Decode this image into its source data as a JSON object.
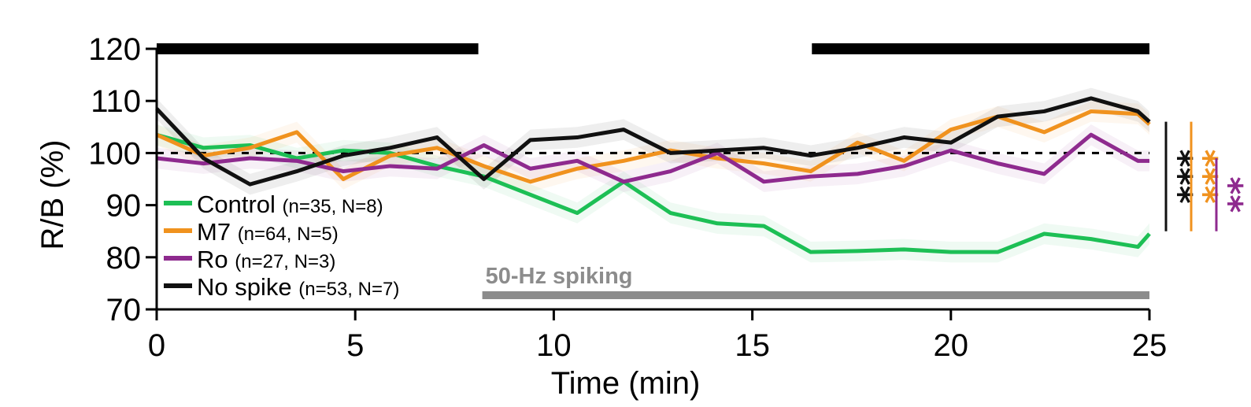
{
  "chart_data": {
    "type": "line",
    "xlabel": "Time (min)",
    "ylabel": "R/B (%)",
    "xlim": [
      0,
      25
    ],
    "ylim": [
      70,
      120
    ],
    "xticks": [
      0,
      5,
      10,
      15,
      20,
      25
    ],
    "yticks": [
      70,
      80,
      90,
      100,
      110,
      120
    ],
    "reference_line": 100,
    "legend_placement": "lower-left",
    "x": [
      0,
      1.18,
      2.35,
      3.53,
      4.7,
      5.88,
      7.06,
      8.24,
      9.41,
      10.59,
      11.76,
      12.94,
      14.12,
      15.29,
      16.47,
      17.65,
      18.82,
      20.0,
      21.18,
      22.35,
      23.53,
      24.71,
      25.0
    ],
    "series": [
      {
        "name": "Control",
        "n_label": "(n=35, N=8)",
        "color": "#1dbf55",
        "values": [
          103.5,
          101,
          101.5,
          99,
          100.5,
          100,
          97.5,
          95.5,
          92,
          88.5,
          94.5,
          88.5,
          86.5,
          86,
          81,
          81.2,
          81.5,
          81,
          81,
          84.5,
          83.5,
          82,
          84.5
        ]
      },
      {
        "name": "M7",
        "n_label": "(n=64, N=5)",
        "color": "#f0921e",
        "values": [
          103.5,
          99.5,
          101,
          104,
          95,
          99.5,
          101,
          97.5,
          94.5,
          97,
          98.5,
          100.5,
          99,
          98,
          96.5,
          102,
          98.5,
          104.5,
          107,
          104,
          108,
          107.5,
          105.5
        ]
      },
      {
        "name": "Ro",
        "n_label": "(n=27, N=3)",
        "color": "#8e2a8e",
        "values": [
          99,
          98,
          99,
          98.5,
          96.5,
          97.5,
          97,
          101.5,
          97,
          98.5,
          94.5,
          96.5,
          100,
          94.5,
          95.5,
          96,
          97.5,
          100.5,
          98,
          96,
          103.5,
          98.5,
          98.5
        ]
      },
      {
        "name": "No spike",
        "n_label": "(n=53, N=7)",
        "color": "#111111",
        "values": [
          108.5,
          99,
          94,
          96.5,
          99.5,
          101,
          103,
          95,
          102.5,
          103,
          104.5,
          100,
          100.5,
          101,
          99.5,
          101,
          103,
          102,
          107,
          108,
          110.5,
          108,
          106
        ]
      }
    ],
    "black_bars": [
      {
        "x0": 0,
        "x1": 8.1,
        "y": 120
      },
      {
        "x0": 16.5,
        "x1": 25,
        "y": 120
      }
    ],
    "stimulus": {
      "label": "50-Hz spiking",
      "x0": 8.2,
      "x1": 25,
      "y": 73,
      "color": "#8c8c8c"
    },
    "significance": [
      {
        "label": "***",
        "color": "#111111",
        "y_range": [
          85,
          106
        ]
      },
      {
        "label": "***",
        "color": "#f0921e",
        "y_range": [
          85,
          106
        ]
      },
      {
        "label": "**",
        "color": "#8e2a8e",
        "y_range": [
          85,
          99
        ]
      }
    ]
  }
}
